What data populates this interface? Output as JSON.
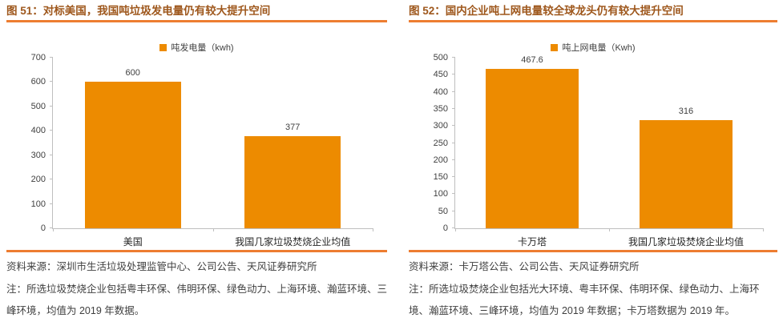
{
  "accent": {
    "rule_orange": "#ED7D31",
    "title_color": "#9E571C",
    "bar_orange": "#ED8B00",
    "axis_gray": "#BFBFBF",
    "text_gray": "#3F3F3F"
  },
  "figures": [
    {
      "title": "图 51：对标美国，我国吨垃圾发电量仍有较大提升空间",
      "source": "资料来源：深圳市生活垃圾处理监管中心、公司公告、天风证券研究所",
      "note": "注：所选垃圾焚烧企业包括粤丰环保、伟明环保、绿色动力、上海环境、瀚蓝环境、三峰环境，均值为 2019 年数据。"
    },
    {
      "title": "图 52：国内企业吨上网电量较全球龙头仍有较大提升空间",
      "source": "资料来源：卡万塔公告、公司公告、天风证券研究所",
      "note": "注：所选垃圾焚烧企业包括光大环境、粤丰环保、伟明环保、绿色动力、上海环境、瀚蓝环境、三峰环境，均值为 2019 年数据；卡万塔数据为 2019 年。"
    }
  ],
  "chart_data": [
    {
      "type": "bar",
      "title": "图 51：对标美国，我国吨垃圾发电量仍有较大提升空间",
      "legend": "吨发电量（kwh)",
      "legend_position": "top",
      "categories": [
        "美国",
        "我国几家垃圾焚烧企业均值"
      ],
      "values": [
        600,
        377
      ],
      "value_labels": [
        "600",
        "377"
      ],
      "xlabel": "",
      "ylabel": "",
      "ylim": [
        0,
        700
      ],
      "ytick_step": 100,
      "grid": false,
      "bar_color": "#ED8B00"
    },
    {
      "type": "bar",
      "title": "图 52：国内企业吨上网电量较全球龙头仍有较大提升空间",
      "legend": "吨上网电量（Kwh)",
      "legend_position": "top",
      "categories": [
        "卡万塔",
        "我国几家垃圾焚烧企业均值"
      ],
      "values": [
        467.6,
        316
      ],
      "value_labels": [
        "467.6",
        "316"
      ],
      "xlabel": "",
      "ylabel": "",
      "ylim": [
        0,
        500
      ],
      "ytick_step": 50,
      "grid": false,
      "bar_color": "#ED8B00"
    }
  ]
}
